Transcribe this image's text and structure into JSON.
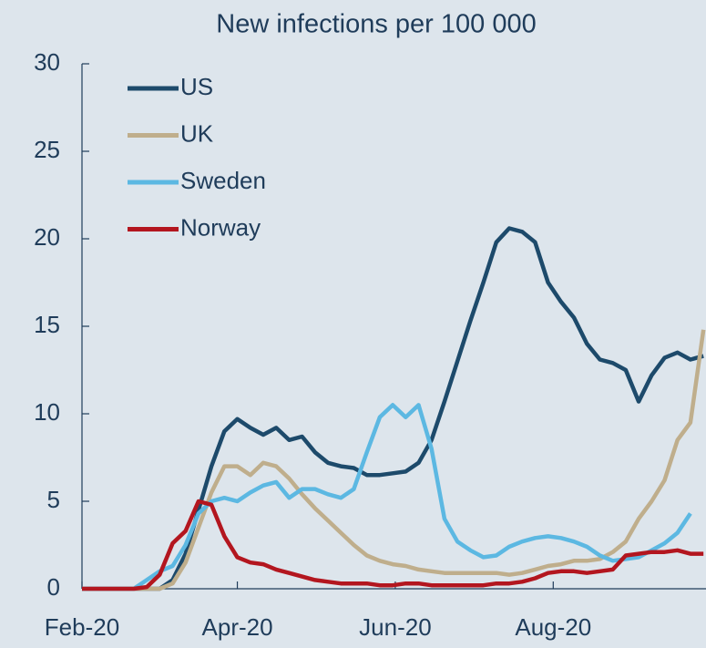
{
  "chart_data": {
    "type": "line",
    "title": "New infections per 100 000",
    "x": [
      0,
      5,
      10,
      15,
      20,
      25,
      30,
      35,
      40,
      45,
      50,
      55,
      60,
      65,
      70,
      75,
      80,
      85,
      90,
      95,
      100,
      105,
      110,
      115,
      120,
      125,
      130,
      135,
      140,
      145,
      150,
      155,
      160,
      165,
      170,
      175,
      180,
      185,
      190,
      195,
      200,
      205,
      210,
      215,
      220,
      225,
      230,
      235,
      240
    ],
    "series": [
      {
        "name": "US",
        "color": "#1d4a6b",
        "values": [
          0,
          0,
          0,
          0,
          0,
          0,
          0,
          0.5,
          2,
          4.5,
          7,
          9,
          9.7,
          9.2,
          8.8,
          9.2,
          8.5,
          8.7,
          7.8,
          7.2,
          7,
          6.9,
          6.5,
          6.5,
          6.6,
          6.7,
          7.2,
          8.5,
          10.7,
          13,
          15.3,
          17.5,
          19.8,
          20.6,
          20.4,
          19.8,
          17.5,
          16.4,
          15.5,
          14,
          13.1,
          12.9,
          12.5,
          10.7,
          12.2,
          13.2,
          13.5,
          13.1,
          13.3
        ]
      },
      {
        "name": "UK",
        "color": "#bfae8c",
        "values": [
          0,
          0,
          0,
          0,
          0,
          0,
          0,
          0.3,
          1.5,
          3.5,
          5.5,
          7,
          7,
          6.5,
          7.2,
          7,
          6.3,
          5.4,
          4.6,
          3.9,
          3.2,
          2.5,
          1.9,
          1.6,
          1.4,
          1.3,
          1.1,
          1,
          0.9,
          0.9,
          0.9,
          0.9,
          0.9,
          0.8,
          0.9,
          1.1,
          1.3,
          1.4,
          1.6,
          1.6,
          1.7,
          2.1,
          2.7,
          4,
          5,
          6.2,
          8.5,
          9.5,
          14.8
        ]
      },
      {
        "name": "Sweden",
        "color": "#5cb8e2",
        "values": [
          0,
          0,
          0,
          0,
          0,
          0.5,
          1,
          1.3,
          2.5,
          4.3,
          5,
          5.2,
          5,
          5.5,
          5.9,
          6.1,
          5.2,
          5.7,
          5.7,
          5.4,
          5.2,
          5.7,
          7.8,
          9.8,
          10.5,
          9.8,
          10.5,
          8,
          4,
          2.7,
          2.2,
          1.8,
          1.9,
          2.4,
          2.7,
          2.9,
          3,
          2.9,
          2.7,
          2.4,
          1.9,
          1.6,
          1.7,
          1.8,
          2.2,
          2.6,
          3.2,
          4.3,
          null
        ]
      },
      {
        "name": "Norway",
        "color": "#b3161f",
        "values": [
          0,
          0,
          0,
          0,
          0,
          0.1,
          0.8,
          2.6,
          3.3,
          5,
          4.8,
          3,
          1.8,
          1.5,
          1.4,
          1.1,
          0.9,
          0.7,
          0.5,
          0.4,
          0.3,
          0.3,
          0.3,
          0.2,
          0.2,
          0.3,
          0.3,
          0.2,
          0.2,
          0.2,
          0.2,
          0.2,
          0.3,
          0.3,
          0.4,
          0.6,
          0.9,
          1,
          1,
          0.9,
          1,
          1.1,
          1.9,
          2,
          2.1,
          2.1,
          2.2,
          2,
          2
        ]
      }
    ],
    "xlim": [
      0,
      241
    ],
    "xticks": [
      {
        "value": 0,
        "label": "Feb-20"
      },
      {
        "value": 60,
        "label": "Apr-20"
      },
      {
        "value": 121,
        "label": "Jun-20"
      },
      {
        "value": 182,
        "label": "Aug-20"
      }
    ],
    "ylim": [
      0,
      30
    ],
    "yticks": [
      0,
      5,
      10,
      15,
      20,
      25,
      30
    ],
    "grid": false,
    "legend": "upper left"
  }
}
